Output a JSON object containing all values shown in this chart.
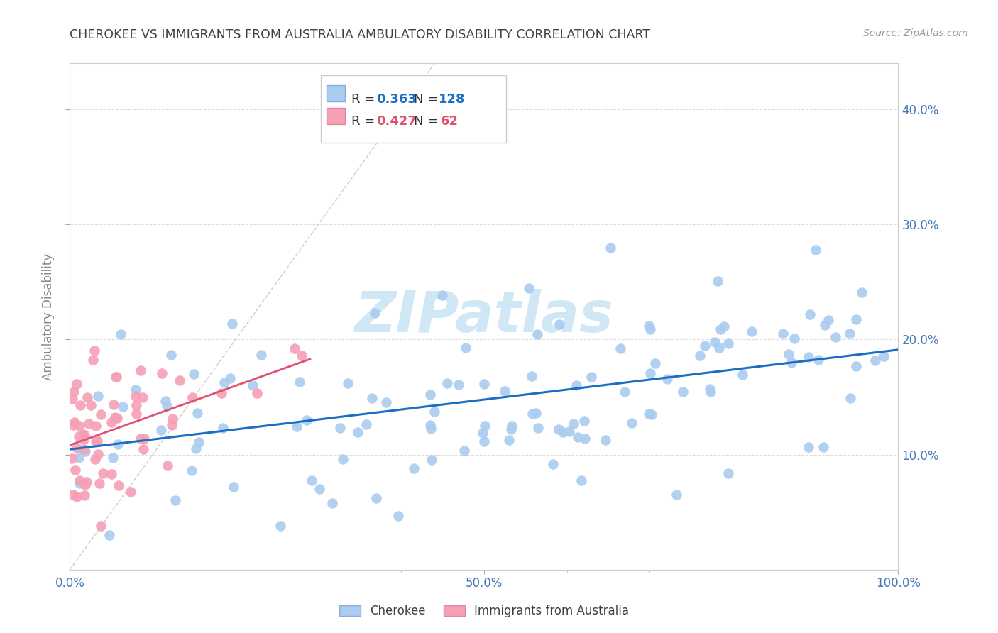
{
  "title": "CHEROKEE VS IMMIGRANTS FROM AUSTRALIA AMBULATORY DISABILITY CORRELATION CHART",
  "source": "Source: ZipAtlas.com",
  "ylabel": "Ambulatory Disability",
  "cherokee_R": 0.363,
  "cherokee_N": 128,
  "australia_R": 0.427,
  "australia_N": 62,
  "cherokee_color": "#aaccf0",
  "australia_color": "#f5a0b5",
  "trendline_cherokee_color": "#1a6fc4",
  "trendline_australia_color": "#e05070",
  "diagonal_color": "#cccccc",
  "grid_color": "#dddddd",
  "title_color": "#404040",
  "axis_label_color": "#4477bb",
  "watermark_color": "#d0e8f5",
  "background_color": "#ffffff",
  "xlim": [
    0.0,
    1.0
  ],
  "ylim": [
    0.0,
    0.44
  ],
  "cherokee_seed": 1234,
  "australia_seed": 5678
}
